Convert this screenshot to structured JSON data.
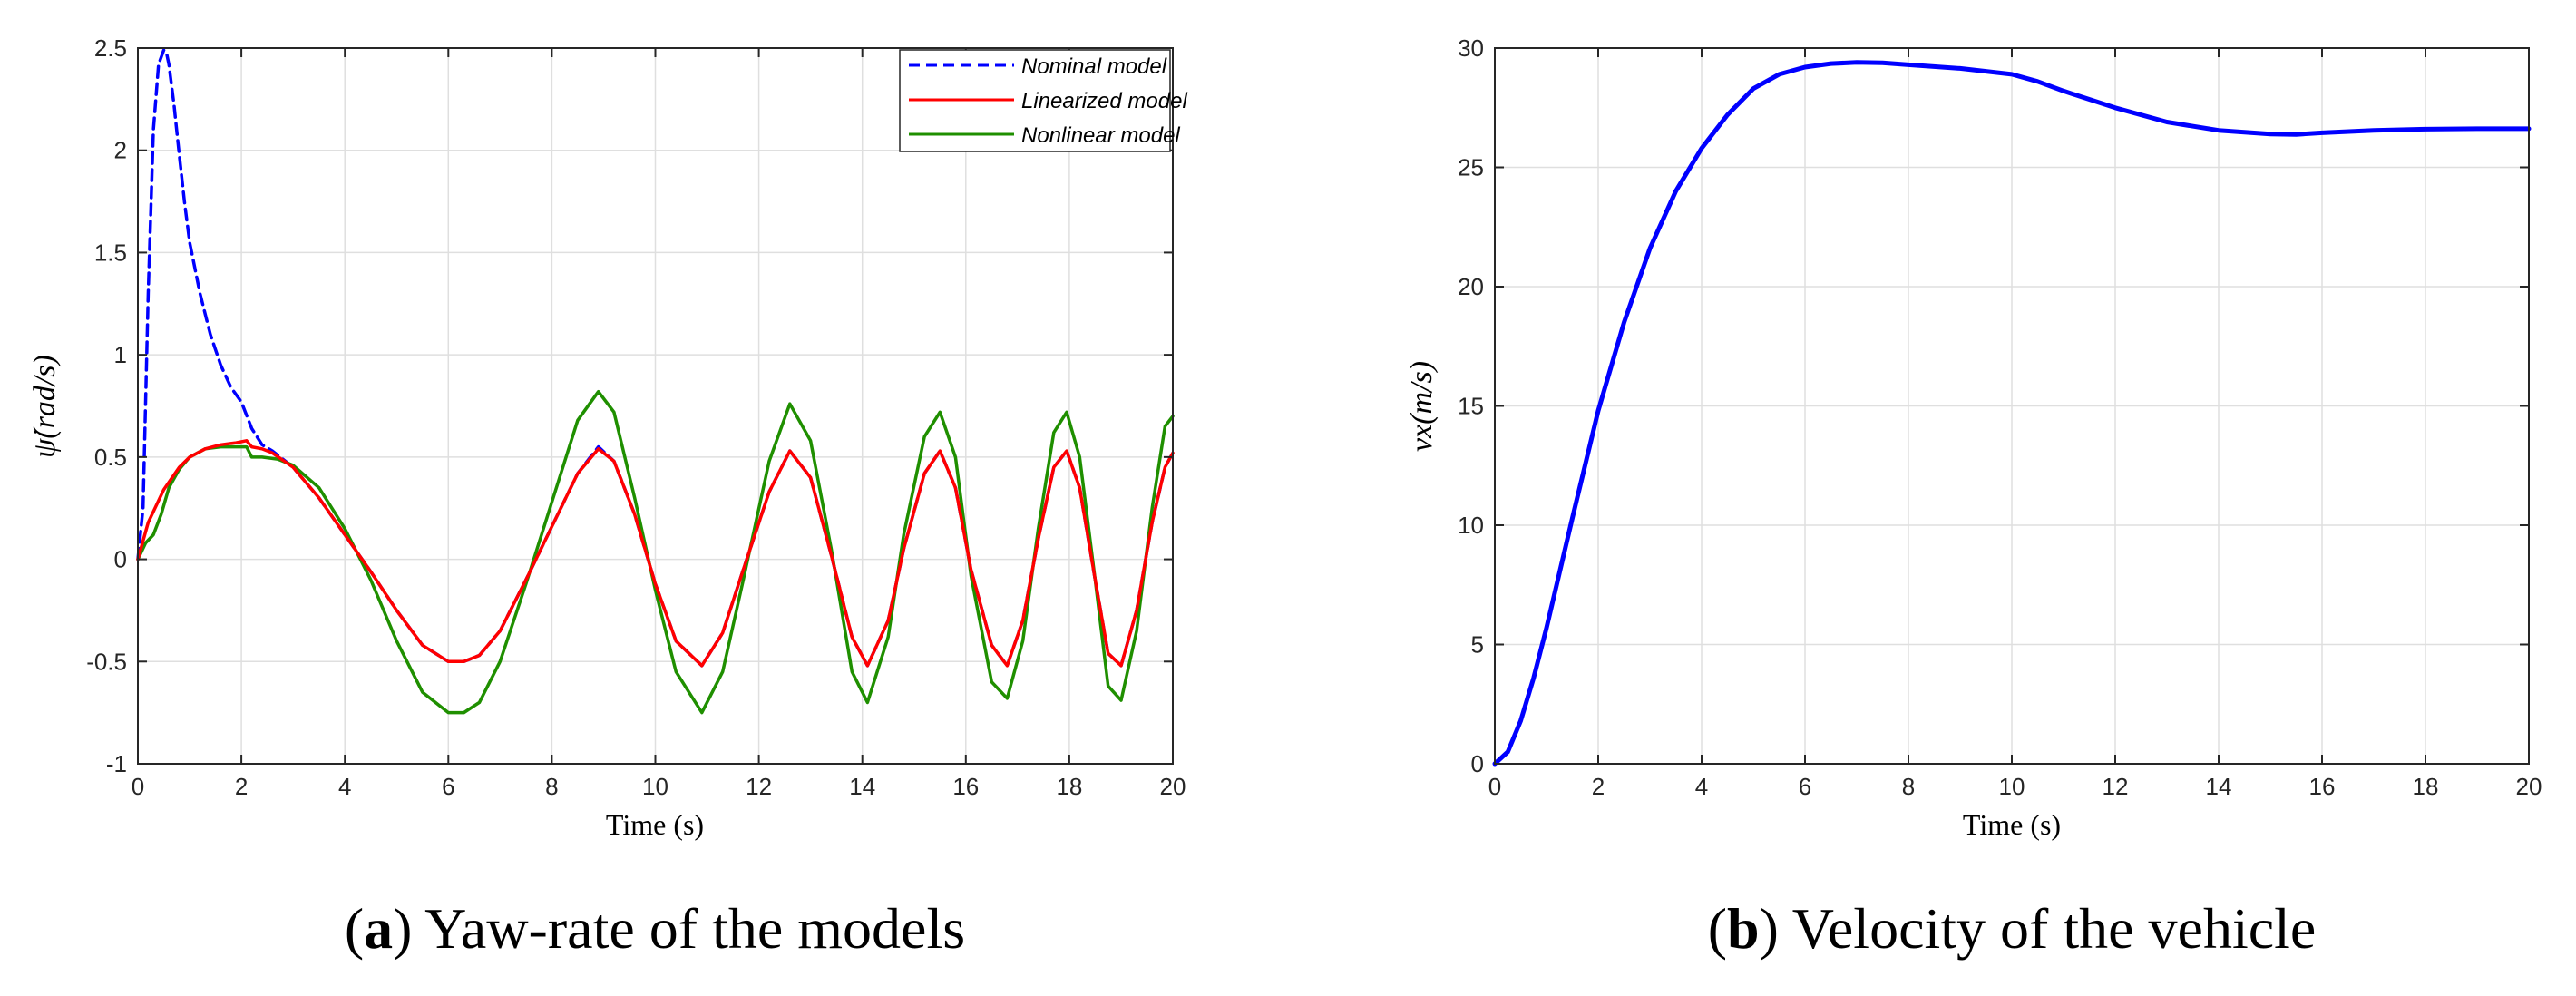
{
  "panels": [
    {
      "caption_tag": "a",
      "caption_text": "Yaw-rate of the models",
      "chart_data": {
        "type": "line",
        "title": "",
        "xlabel": "Time (s)",
        "ylabel_symbol": "ψ̇",
        "ylabel_units": "(rad/s)",
        "xlim": [
          0,
          20
        ],
        "ylim": [
          -1,
          2.5
        ],
        "xticks": [
          0,
          2,
          4,
          6,
          8,
          10,
          12,
          14,
          16,
          18,
          20
        ],
        "yticks": [
          -1,
          -0.5,
          0,
          0.5,
          1,
          1.5,
          2,
          2.5
        ],
        "ytick_labels": [
          "-1",
          "-0.5",
          "0",
          "0.5",
          "1",
          "1.5",
          "2",
          "2.5"
        ],
        "grid": true,
        "legend_position": "top-right",
        "series": [
          {
            "name": "Nominal model",
            "color": "#0000ff",
            "style": "dashed",
            "x": [
              0,
              0.1,
              0.2,
              0.3,
              0.4,
              0.5,
              0.55,
              0.6,
              0.7,
              0.8,
              0.9,
              1.0,
              1.2,
              1.4,
              1.6,
              1.8,
              2.0,
              2.2,
              2.4,
              2.6,
              3.0,
              3.5,
              4.0,
              4.5,
              5.0,
              5.5,
              6.0,
              6.3,
              6.6,
              7.0,
              7.5,
              8.0,
              8.5,
              8.9,
              9.2,
              9.6,
              10.0,
              10.4,
              10.9,
              11.3,
              11.7,
              12.2,
              12.6,
              13.0,
              13.4,
              13.8,
              14.1,
              14.5,
              14.8,
              15.2,
              15.5,
              15.8,
              16.1,
              16.5,
              16.8,
              17.1,
              17.4,
              17.7,
              17.95,
              18.2,
              18.5,
              18.75,
              19.0,
              19.3,
              19.6,
              19.85,
              20.0
            ],
            "y": [
              0,
              0.25,
              1.3,
              2.1,
              2.42,
              2.49,
              2.48,
              2.42,
              2.22,
              1.98,
              1.75,
              1.55,
              1.3,
              1.1,
              0.95,
              0.84,
              0.77,
              0.64,
              0.56,
              0.53,
              0.45,
              0.3,
              0.12,
              -0.06,
              -0.25,
              -0.42,
              -0.5,
              -0.5,
              -0.47,
              -0.35,
              -0.1,
              0.16,
              0.42,
              0.55,
              0.48,
              0.22,
              -0.12,
              -0.4,
              -0.52,
              -0.36,
              -0.05,
              0.33,
              0.53,
              0.4,
              0.02,
              -0.38,
              -0.52,
              -0.3,
              0.05,
              0.42,
              0.53,
              0.35,
              -0.05,
              -0.42,
              -0.52,
              -0.3,
              0.1,
              0.45,
              0.53,
              0.35,
              -0.1,
              -0.46,
              -0.52,
              -0.25,
              0.18,
              0.45,
              0.52
            ]
          },
          {
            "name": "Linearized model",
            "color": "#ff0000",
            "style": "solid",
            "x": [
              0,
              0.2,
              0.5,
              0.8,
              1.0,
              1.3,
              1.6,
              1.9,
              2.1,
              2.2,
              2.4,
              2.6,
              3.0,
              3.5,
              4.0,
              4.5,
              5.0,
              5.5,
              6.0,
              6.3,
              6.6,
              7.0,
              7.5,
              8.0,
              8.5,
              8.9,
              9.2,
              9.6,
              10.0,
              10.4,
              10.9,
              11.3,
              11.7,
              12.2,
              12.6,
              13.0,
              13.4,
              13.8,
              14.1,
              14.5,
              14.8,
              15.2,
              15.5,
              15.8,
              16.1,
              16.5,
              16.8,
              17.1,
              17.4,
              17.7,
              17.95,
              18.2,
              18.5,
              18.75,
              19.0,
              19.3,
              19.6,
              19.85,
              20.0
            ],
            "y": [
              0,
              0.18,
              0.34,
              0.45,
              0.5,
              0.54,
              0.56,
              0.57,
              0.58,
              0.55,
              0.54,
              0.52,
              0.45,
              0.3,
              0.12,
              -0.06,
              -0.25,
              -0.42,
              -0.5,
              -0.5,
              -0.47,
              -0.35,
              -0.1,
              0.16,
              0.42,
              0.54,
              0.48,
              0.22,
              -0.12,
              -0.4,
              -0.52,
              -0.36,
              -0.05,
              0.33,
              0.53,
              0.4,
              0.02,
              -0.38,
              -0.52,
              -0.3,
              0.05,
              0.42,
              0.53,
              0.35,
              -0.05,
              -0.42,
              -0.52,
              -0.3,
              0.1,
              0.45,
              0.53,
              0.35,
              -0.1,
              -0.46,
              -0.52,
              -0.25,
              0.18,
              0.45,
              0.52
            ]
          },
          {
            "name": "Nonlinear model",
            "color": "#1f8f00",
            "style": "solid",
            "x": [
              0,
              0.15,
              0.3,
              0.45,
              0.6,
              0.8,
              1.0,
              1.3,
              1.6,
              1.9,
              2.1,
              2.2,
              2.4,
              2.7,
              3.0,
              3.5,
              4.0,
              4.5,
              5.0,
              5.5,
              6.0,
              6.3,
              6.6,
              7.0,
              7.5,
              8.0,
              8.5,
              8.9,
              9.2,
              9.6,
              10.0,
              10.4,
              10.9,
              11.3,
              11.7,
              12.2,
              12.6,
              13.0,
              13.4,
              13.8,
              14.1,
              14.5,
              14.8,
              15.2,
              15.5,
              15.8,
              16.1,
              16.5,
              16.8,
              17.1,
              17.4,
              17.7,
              17.95,
              18.2,
              18.5,
              18.75,
              19.0,
              19.3,
              19.6,
              19.85,
              20.0
            ],
            "y": [
              0,
              0.08,
              0.12,
              0.22,
              0.35,
              0.44,
              0.5,
              0.54,
              0.55,
              0.55,
              0.55,
              0.5,
              0.5,
              0.49,
              0.46,
              0.35,
              0.15,
              -0.1,
              -0.4,
              -0.65,
              -0.75,
              -0.75,
              -0.7,
              -0.5,
              -0.12,
              0.28,
              0.68,
              0.82,
              0.72,
              0.3,
              -0.15,
              -0.55,
              -0.75,
              -0.55,
              -0.1,
              0.48,
              0.76,
              0.58,
              0.05,
              -0.55,
              -0.7,
              -0.38,
              0.12,
              0.6,
              0.72,
              0.5,
              -0.08,
              -0.6,
              -0.68,
              -0.4,
              0.15,
              0.62,
              0.72,
              0.5,
              -0.1,
              -0.62,
              -0.69,
              -0.35,
              0.25,
              0.65,
              0.7
            ]
          }
        ]
      }
    },
    {
      "caption_tag": "b",
      "caption_text": "Velocity of the vehicle",
      "chart_data": {
        "type": "line",
        "title": "",
        "xlabel": "Time (s)",
        "ylabel_symbol": "vx",
        "ylabel_units": "(m/s)",
        "xlim": [
          0,
          20
        ],
        "ylim": [
          0,
          30
        ],
        "xticks": [
          0,
          2,
          4,
          6,
          8,
          10,
          12,
          14,
          16,
          18,
          20
        ],
        "yticks": [
          0,
          5,
          10,
          15,
          20,
          25,
          30
        ],
        "ytick_labels": [
          "0",
          "5",
          "10",
          "15",
          "20",
          "25",
          "30"
        ],
        "grid": true,
        "legend_position": "none",
        "series": [
          {
            "name": "vx",
            "color": "#0000ff",
            "style": "solid",
            "x": [
              0,
              0.25,
              0.5,
              0.75,
              1.0,
              1.5,
              2.0,
              2.5,
              3.0,
              3.5,
              4.0,
              4.5,
              5.0,
              5.5,
              6.0,
              6.5,
              7.0,
              7.5,
              8.0,
              9.0,
              10.0,
              10.5,
              11.0,
              12.0,
              13.0,
              14.0,
              15.0,
              15.5,
              16.0,
              17.0,
              18.0,
              19.0,
              20.0
            ],
            "y": [
              0,
              0.5,
              1.8,
              3.6,
              5.7,
              10.3,
              14.8,
              18.5,
              21.6,
              24.0,
              25.8,
              27.2,
              28.3,
              28.9,
              29.2,
              29.35,
              29.4,
              29.38,
              29.3,
              29.15,
              28.9,
              28.6,
              28.2,
              27.5,
              26.9,
              26.55,
              26.4,
              26.38,
              26.45,
              26.55,
              26.6,
              26.62,
              26.62
            ]
          }
        ]
      }
    }
  ]
}
